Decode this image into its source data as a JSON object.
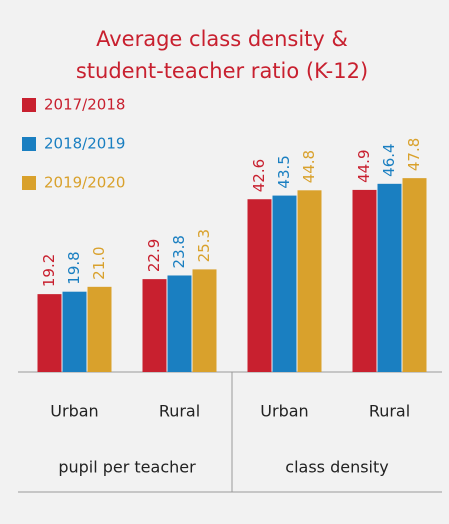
{
  "chart_data": {
    "type": "bar",
    "title": [
      "Average class density &",
      "student-teacher ratio (K-12)"
    ],
    "categories": [
      "Urban",
      "Rural",
      "Urban",
      "Rural"
    ],
    "groups": [
      "pupil per teacher",
      "class density"
    ],
    "series": [
      {
        "name": "2017/2018",
        "color": "#c8202f",
        "values": [
          19.2,
          22.9,
          42.6,
          44.9
        ],
        "value_labels": [
          "19.2",
          "22.9",
          "42.6",
          "44.9"
        ]
      },
      {
        "name": "2018/2019",
        "color": "#1a7fc1",
        "values": [
          19.8,
          23.8,
          43.5,
          46.4
        ],
        "value_labels": [
          "19.8",
          "23.8",
          "43.5",
          "46.4"
        ]
      },
      {
        "name": "2019/2020",
        "color": "#d9a12c",
        "values": [
          21.0,
          25.3,
          44.8,
          47.8
        ],
        "value_labels": [
          "21.0",
          "25.3",
          "44.8",
          "47.8"
        ]
      }
    ],
    "ylim": [
      0,
      90
    ]
  }
}
